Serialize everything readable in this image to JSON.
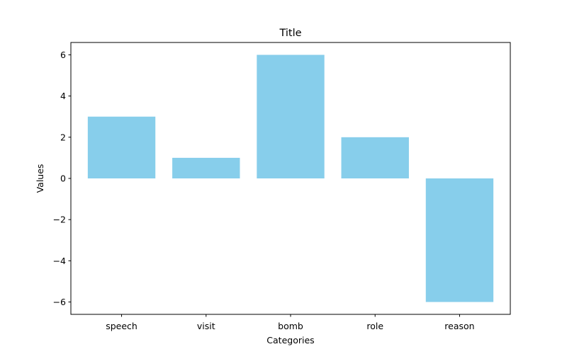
{
  "chart_data": {
    "type": "bar",
    "title": "Title",
    "xlabel": "Categories",
    "ylabel": "Values",
    "categories": [
      "speech",
      "visit",
      "bomb",
      "role",
      "reason"
    ],
    "values": [
      3,
      1,
      6,
      2,
      -6
    ],
    "ylim": [
      -6.6,
      6.6
    ],
    "yticks": [
      -6,
      -4,
      -2,
      0,
      2,
      4,
      6
    ],
    "grid": false,
    "legend": "none",
    "bar_color": "#87ceeb",
    "axes_color": "#000000"
  }
}
